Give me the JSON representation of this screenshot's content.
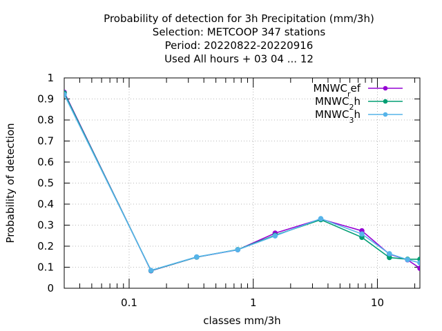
{
  "chart_data": {
    "type": "line",
    "title_lines": [
      "Probability of detection  for 3h Precipitation (mm/3h)",
      "Selection: METCOOP    347 stations",
      "Period: 20220822-20220916",
      "Used  All hours  + 03 04 ... 12"
    ],
    "xlabel": "classes mm/3h",
    "ylabel": "Probability of detection",
    "x_scale": "log",
    "xlim": [
      0.03,
      22
    ],
    "ylim": [
      0,
      1
    ],
    "x_ticks": [
      {
        "value": 0.1,
        "label": "0.1"
      },
      {
        "value": 1,
        "label": "1"
      },
      {
        "value": 10,
        "label": "10"
      }
    ],
    "y_ticks": [
      {
        "value": 0,
        "label": "0"
      },
      {
        "value": 0.1,
        "label": "0.1"
      },
      {
        "value": 0.2,
        "label": "0.2"
      },
      {
        "value": 0.3,
        "label": "0.3"
      },
      {
        "value": 0.4,
        "label": "0.4"
      },
      {
        "value": 0.5,
        "label": "0.5"
      },
      {
        "value": 0.6,
        "label": "0.6"
      },
      {
        "value": 0.7,
        "label": "0.7"
      },
      {
        "value": 0.8,
        "label": "0.8"
      },
      {
        "value": 0.9,
        "label": "0.9"
      },
      {
        "value": 1,
        "label": "1"
      }
    ],
    "grid": true,
    "legend_position": "top-right",
    "x": [
      0.03,
      0.15,
      0.35,
      0.75,
      1.5,
      3.5,
      7.5,
      12.5,
      17.5,
      22
    ],
    "series": [
      {
        "name": "MNWC_ref",
        "legend_parts": [
          "MNWC",
          "r",
          "ef"
        ],
        "color": "#9400d3",
        "values": [
          0.932,
          0.083,
          0.148,
          0.183,
          0.262,
          0.329,
          0.273,
          0.162,
          0.135,
          0.095
        ]
      },
      {
        "name": "MNWC_2h",
        "legend_parts": [
          "MNWC",
          "2",
          "h"
        ],
        "color": "#009e73",
        "values": [
          0.928,
          0.084,
          0.148,
          0.184,
          0.252,
          0.326,
          0.242,
          0.146,
          0.138,
          0.138
        ]
      },
      {
        "name": "MNWC_3h",
        "legend_parts": [
          "MNWC",
          "3",
          "h"
        ],
        "color": "#56b4e9",
        "values": [
          0.921,
          0.085,
          0.149,
          0.183,
          0.249,
          0.331,
          0.258,
          0.164,
          0.136,
          0.121
        ]
      }
    ]
  }
}
